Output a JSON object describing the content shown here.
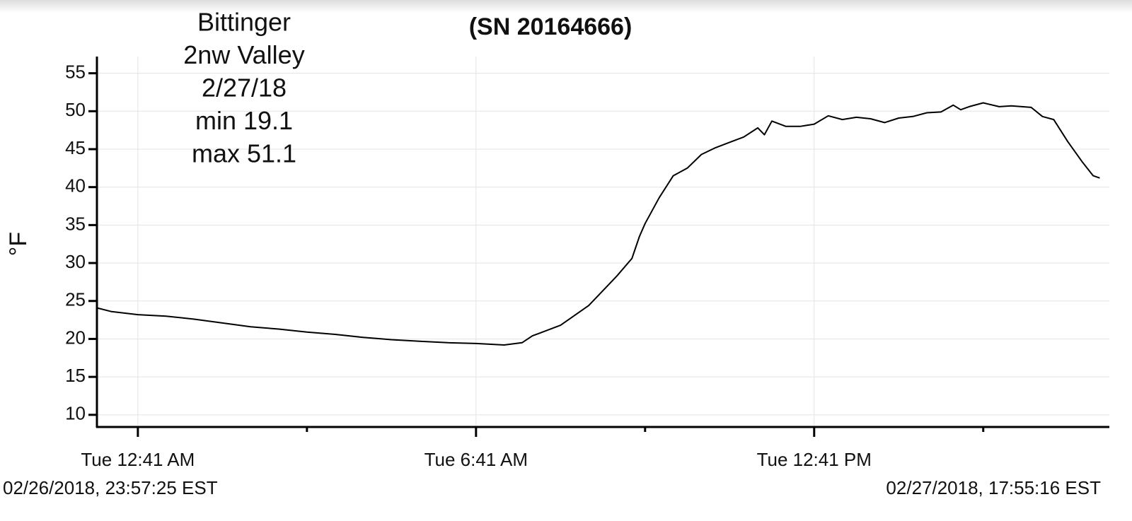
{
  "chart_data": {
    "type": "line",
    "title": "(SN 20164666)",
    "annotation": [
      "Bittinger",
      "2nw Valley",
      "2/27/18",
      "min 19.1",
      "max 51.1"
    ],
    "ylabel": "°F",
    "start_label": "02/26/2018, 23:57:25 EST",
    "end_label": "02/27/2018, 17:55:16 EST",
    "xlim": [
      "2018-02-26T23:57:25",
      "2018-02-27T17:55:16"
    ],
    "xticks": [
      {
        "value": "2018-02-27T00:41",
        "label": "Tue 12:41 AM"
      },
      {
        "value": "2018-02-27T06:41",
        "label": "Tue 6:41 AM"
      },
      {
        "value": "2018-02-27T12:41",
        "label": "Tue 12:41 PM"
      }
    ],
    "xminorticks": [
      "2018-02-27T03:41",
      "2018-02-27T09:41",
      "2018-02-27T15:41"
    ],
    "ylim": [
      8.4,
      57.2
    ],
    "yticks": [
      10,
      15,
      20,
      25,
      30,
      35,
      40,
      45,
      50,
      55
    ],
    "grid": true,
    "x": [
      "2018-02-26T23:57",
      "2018-02-27T00:13",
      "2018-02-27T00:41",
      "2018-02-27T01:11",
      "2018-02-27T01:41",
      "2018-02-27T02:11",
      "2018-02-27T02:41",
      "2018-02-27T03:11",
      "2018-02-27T03:41",
      "2018-02-27T04:11",
      "2018-02-27T04:41",
      "2018-02-27T05:11",
      "2018-02-27T05:41",
      "2018-02-27T06:11",
      "2018-02-27T06:41",
      "2018-02-27T07:11",
      "2018-02-27T07:30",
      "2018-02-27T07:41",
      "2018-02-27T08:11",
      "2018-02-27T08:41",
      "2018-02-27T09:01",
      "2018-02-27T09:11",
      "2018-02-27T09:27",
      "2018-02-27T09:35",
      "2018-02-27T09:41",
      "2018-02-27T09:56",
      "2018-02-27T10:11",
      "2018-02-27T10:26",
      "2018-02-27T10:41",
      "2018-02-27T10:56",
      "2018-02-27T11:11",
      "2018-02-27T11:26",
      "2018-02-27T11:41",
      "2018-02-27T11:48",
      "2018-02-27T11:56",
      "2018-02-27T12:11",
      "2018-02-27T12:26",
      "2018-02-27T12:41",
      "2018-02-27T12:56",
      "2018-02-27T13:11",
      "2018-02-27T13:26",
      "2018-02-27T13:41",
      "2018-02-27T13:56",
      "2018-02-27T14:11",
      "2018-02-27T14:26",
      "2018-02-27T14:41",
      "2018-02-27T14:56",
      "2018-02-27T15:09",
      "2018-02-27T15:17",
      "2018-02-27T15:26",
      "2018-02-27T15:41",
      "2018-02-27T15:58",
      "2018-02-27T16:11",
      "2018-02-27T16:32",
      "2018-02-27T16:44",
      "2018-02-27T16:56",
      "2018-02-27T17:11",
      "2018-02-27T17:26",
      "2018-02-27T17:38",
      "2018-02-27T17:45"
    ],
    "series": [
      {
        "color": "#000000",
        "values": [
          24.1,
          23.6,
          23.2,
          23.0,
          22.6,
          22.1,
          21.6,
          21.3,
          20.9,
          20.6,
          20.2,
          19.9,
          19.7,
          19.5,
          19.4,
          19.2,
          19.5,
          20.4,
          21.8,
          24.4,
          27.0,
          28.3,
          30.6,
          33.5,
          35.2,
          38.6,
          41.5,
          42.5,
          44.3,
          45.2,
          45.9,
          46.6,
          47.8,
          46.9,
          48.7,
          48.0,
          48.0,
          48.3,
          49.4,
          48.9,
          49.2,
          49.0,
          48.5,
          49.1,
          49.3,
          49.8,
          49.9,
          50.8,
          50.2,
          50.6,
          51.1,
          50.6,
          50.7,
          50.5,
          49.3,
          48.9,
          46.0,
          43.4,
          41.5,
          41.2
        ]
      }
    ]
  }
}
